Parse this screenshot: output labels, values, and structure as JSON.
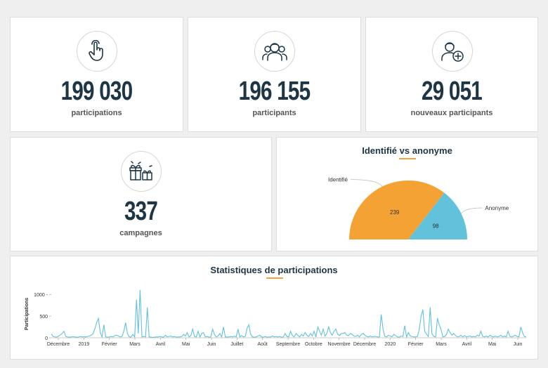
{
  "stats": [
    {
      "value": "199 030",
      "label": "participations",
      "icon": "pointer-hand-icon"
    },
    {
      "value": "196 155",
      "label": "participants",
      "icon": "people-group-icon"
    },
    {
      "value": "29 051",
      "label": "nouveaux participants",
      "icon": "add-person-icon"
    },
    {
      "value": "337",
      "label": "campagnes",
      "icon": "gifts-icon"
    }
  ],
  "pie": {
    "title": "Identifié vs anonyme",
    "chart_data": {
      "type": "pie",
      "slices": [
        {
          "name": "Identifié",
          "value": 239,
          "color": "#f5a234"
        },
        {
          "name": "Anonyme",
          "value": 98,
          "color": "#62c1db"
        }
      ]
    }
  },
  "line": {
    "title": "Statistiques de participations",
    "chart_data": {
      "type": "line",
      "ylabel": "Participations",
      "ylim": [
        0,
        1100
      ],
      "yticks": [
        "0",
        "500",
        "1000 -"
      ],
      "ytick_values": [
        0,
        500,
        1000
      ],
      "xticks": [
        "Décembre",
        "2019",
        "Février",
        "Mars",
        "Avril",
        "Mai",
        "Juin",
        "Juillet",
        "Août",
        "Septembre",
        "Octobre",
        "Novembre",
        "Décembre",
        "2020",
        "Février",
        "Mars",
        "Avril",
        "Mai",
        "Juin"
      ],
      "color": "#62c1db",
      "series": [
        {
          "values": [
            90,
            30,
            20,
            15,
            40,
            70,
            100,
            150,
            30,
            20,
            15,
            20,
            25,
            20,
            15,
            15,
            30,
            20,
            25,
            20,
            30,
            40,
            60,
            90,
            200,
            350,
            450,
            120,
            20,
            300,
            20,
            15,
            20,
            30,
            20,
            50,
            60,
            40,
            20,
            30,
            150,
            350,
            100,
            20,
            15,
            80,
            20,
            880,
            100,
            1100,
            20,
            30,
            20,
            700,
            20,
            15,
            10,
            15,
            20,
            20,
            30,
            20,
            15,
            60,
            20,
            30,
            40,
            20,
            30,
            15,
            20,
            20,
            30,
            80,
            40,
            120,
            20,
            50,
            200,
            30,
            20,
            150,
            20,
            100,
            120,
            20,
            30,
            15,
            20,
            200,
            80,
            20,
            40,
            100,
            20,
            250,
            20,
            20,
            20,
            30,
            20,
            40,
            20,
            200,
            20,
            50,
            20,
            30,
            220,
            300,
            80,
            20,
            15,
            20,
            40,
            60,
            20,
            15,
            30,
            15,
            20,
            20,
            40,
            20,
            30,
            20,
            30,
            15,
            20,
            100,
            30,
            20,
            150,
            50,
            20,
            100,
            60,
            20,
            80,
            40,
            120,
            60,
            30,
            100,
            40,
            150,
            20,
            250,
            150,
            60,
            200,
            40,
            100,
            250,
            120,
            60,
            150,
            200,
            80,
            50,
            100,
            100,
            120,
            60,
            50,
            100,
            80,
            40,
            30,
            60,
            20,
            80,
            100,
            60,
            30,
            20,
            40,
            20,
            30,
            30,
            20,
            20,
            540,
            200,
            30,
            20,
            60,
            40,
            20,
            80,
            50,
            20,
            15,
            40,
            30,
            280,
            20,
            120,
            40,
            30,
            20,
            20,
            30,
            200,
            500,
            650,
            150,
            80,
            30,
            700,
            100,
            30,
            20,
            450,
            300,
            200,
            20,
            30,
            80,
            200,
            120,
            60,
            100,
            50,
            20,
            30,
            60,
            20,
            50,
            20,
            30,
            40,
            20,
            30,
            20,
            60,
            40,
            150,
            30,
            20,
            40,
            20,
            60,
            30,
            20,
            40,
            20,
            30,
            60,
            20,
            40,
            20,
            150,
            30,
            20,
            40,
            60,
            30,
            20,
            250,
            120,
            30,
            20
          ]
        }
      ]
    }
  }
}
